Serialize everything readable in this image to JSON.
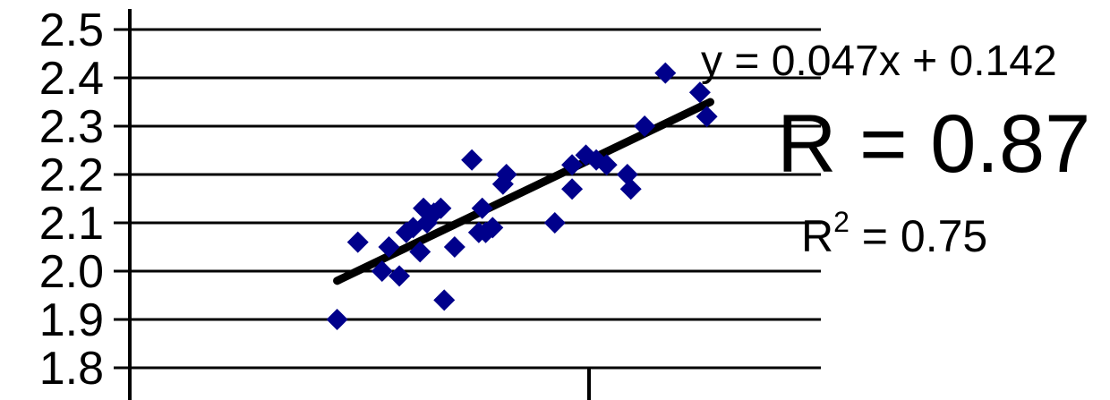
{
  "chart_data": {
    "type": "scatter",
    "title": "",
    "xlabel": "",
    "ylabel": "",
    "ylim": [
      1.8,
      2.5
    ],
    "yticks": [
      "2.5",
      "2.4",
      "2.3",
      "2.2",
      "2.1",
      "2.0",
      "1.9",
      "1.8"
    ],
    "grid": "horizontal",
    "x_tick_labels_visible": false,
    "point_color": "#00008b",
    "trendline_color": "#000000",
    "series": [
      {
        "marker": "diamond",
        "points": [
          {
            "x": 0.3,
            "y": 1.9
          },
          {
            "x": 0.33,
            "y": 2.06
          },
          {
            "x": 0.365,
            "y": 2.0
          },
          {
            "x": 0.375,
            "y": 2.05
          },
          {
            "x": 0.39,
            "y": 1.99
          },
          {
            "x": 0.4,
            "y": 2.08
          },
          {
            "x": 0.41,
            "y": 2.09
          },
          {
            "x": 0.42,
            "y": 2.04
          },
          {
            "x": 0.425,
            "y": 2.13
          },
          {
            "x": 0.43,
            "y": 2.1
          },
          {
            "x": 0.44,
            "y": 2.12
          },
          {
            "x": 0.45,
            "y": 2.13
          },
          {
            "x": 0.455,
            "y": 1.94
          },
          {
            "x": 0.47,
            "y": 2.05
          },
          {
            "x": 0.495,
            "y": 2.23
          },
          {
            "x": 0.505,
            "y": 2.08
          },
          {
            "x": 0.51,
            "y": 2.13
          },
          {
            "x": 0.515,
            "y": 2.08
          },
          {
            "x": 0.525,
            "y": 2.09
          },
          {
            "x": 0.54,
            "y": 2.18
          },
          {
            "x": 0.545,
            "y": 2.2
          },
          {
            "x": 0.615,
            "y": 2.1
          },
          {
            "x": 0.64,
            "y": 2.17
          },
          {
            "x": 0.64,
            "y": 2.22
          },
          {
            "x": 0.66,
            "y": 2.24
          },
          {
            "x": 0.675,
            "y": 2.23
          },
          {
            "x": 0.69,
            "y": 2.22
          },
          {
            "x": 0.72,
            "y": 2.2
          },
          {
            "x": 0.725,
            "y": 2.17
          },
          {
            "x": 0.745,
            "y": 2.3
          },
          {
            "x": 0.775,
            "y": 2.41
          },
          {
            "x": 0.825,
            "y": 2.37
          },
          {
            "x": 0.835,
            "y": 2.32
          }
        ]
      }
    ],
    "trendline": {
      "x_start": 0.3,
      "y_start": 1.98,
      "x_end": 0.84,
      "y_end": 2.35
    },
    "annotations": {
      "equation": "y = 0.047x + 0.142",
      "r": "R = 0.87",
      "r2_base": "R",
      "r2_sup": "2",
      "r2_rest": " = 0.75"
    }
  }
}
